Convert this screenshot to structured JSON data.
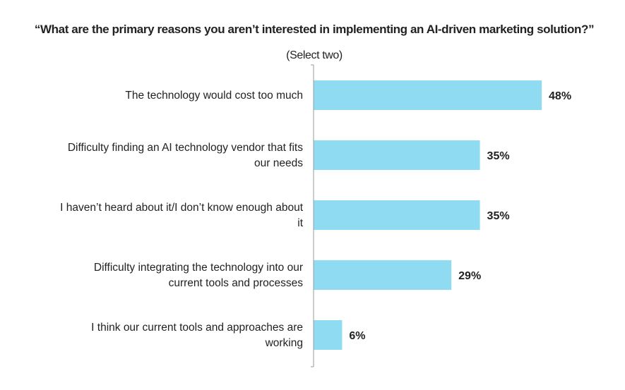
{
  "chart_data": {
    "type": "bar",
    "orientation": "horizontal",
    "title": "“What are the primary reasons you aren’t interested in implementing an AI-driven marketing solution?”",
    "subtitle": "(Select two)",
    "categories": [
      [
        "The technology would cost too much"
      ],
      [
        "Difficulty finding an AI technology vendor that fits",
        "our needs"
      ],
      [
        "I haven’t heard about it/I don’t know enough about",
        "it"
      ],
      [
        "Difficulty integrating the technology into our",
        "current tools and processes"
      ],
      [
        "I think our current tools and approaches are",
        "working"
      ]
    ],
    "values": [
      48,
      35,
      35,
      29,
      6
    ],
    "value_labels": [
      "48%",
      "35%",
      "35%",
      "29%",
      "6%"
    ],
    "unit": "%",
    "xlim": [
      0,
      60
    ],
    "grid": false,
    "bar_color": "#8fdcf2"
  }
}
